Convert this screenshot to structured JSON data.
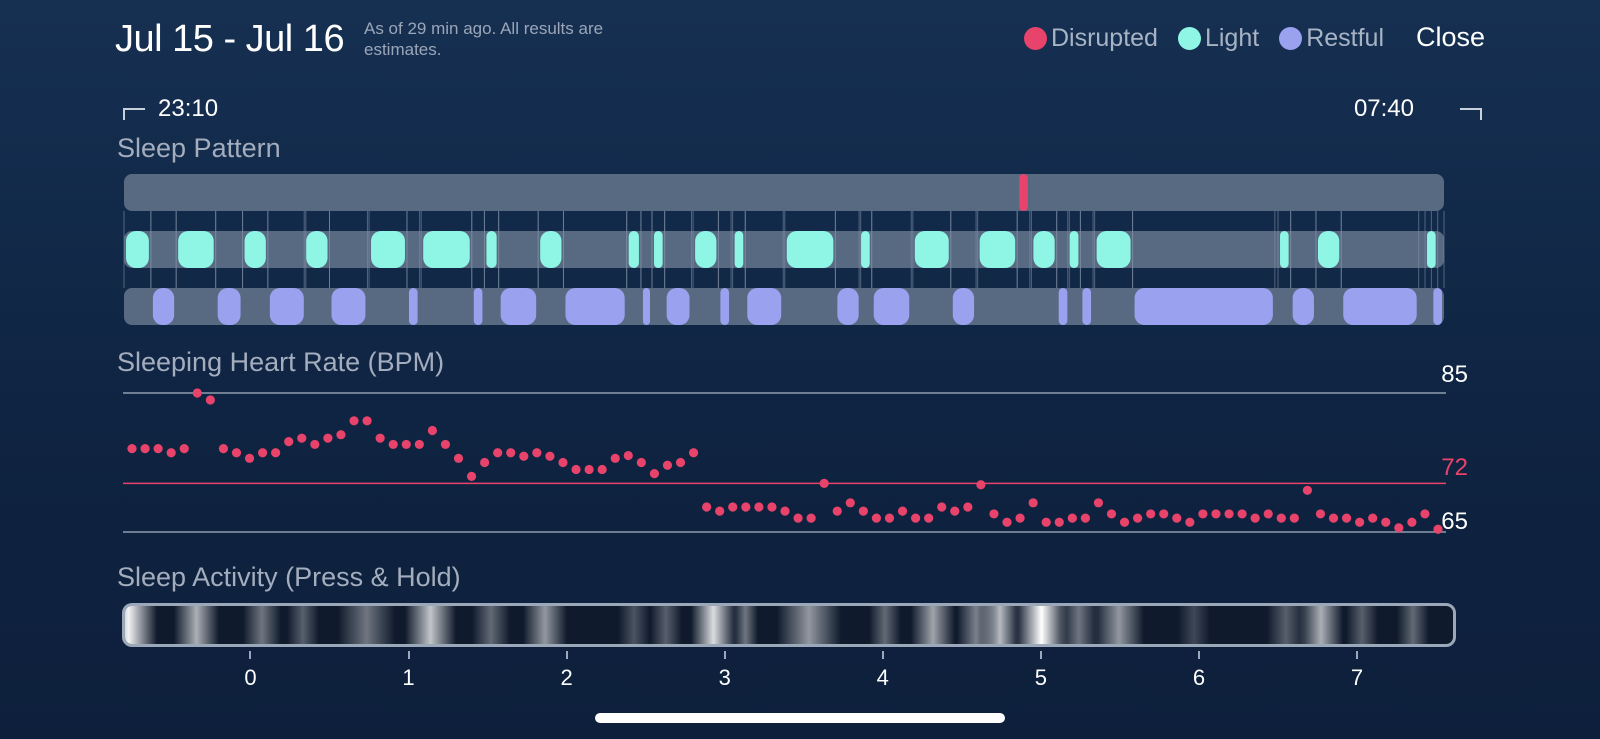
{
  "header": {
    "date_range": "Jul 15 - Jul 16",
    "note": "As of 29 min ago. All results are estimates.",
    "close_label": "Close"
  },
  "legend": [
    {
      "label": "Disrupted",
      "color": "#e8436a"
    },
    {
      "label": "Light",
      "color": "#8ff5e4"
    },
    {
      "label": "Restful",
      "color": "#9aa2f0"
    }
  ],
  "time_range": {
    "start": "23:10",
    "end": "07:40"
  },
  "colors": {
    "track": "#586a82",
    "disrupted": "#e8436a",
    "light": "#8ff5e4",
    "restful": "#9aa2f0",
    "heart_dot": "#e8436a",
    "avg_line": "#e8436a",
    "grid_line": "#8f9bad"
  },
  "sleep_pattern": {
    "label": "Sleep Pattern",
    "x_start": -0.8,
    "x_end": 7.55,
    "disrupted": [
      [
        4.85,
        4.93
      ]
    ],
    "light": [
      [
        -0.8,
        -0.63
      ],
      [
        -0.47,
        -0.22
      ],
      [
        -0.05,
        0.11
      ],
      [
        0.34,
        0.5
      ],
      [
        0.75,
        0.99
      ],
      [
        1.08,
        1.4
      ],
      [
        1.48,
        1.57
      ],
      [
        1.82,
        1.98
      ],
      [
        2.38,
        2.47
      ],
      [
        2.54,
        2.62
      ],
      [
        2.8,
        2.96
      ],
      [
        3.05,
        3.13
      ],
      [
        3.38,
        3.7
      ],
      [
        3.85,
        3.93
      ],
      [
        4.19,
        4.43
      ],
      [
        4.6,
        4.85
      ],
      [
        4.94,
        5.1
      ],
      [
        5.17,
        5.25
      ],
      [
        5.34,
        5.58
      ],
      [
        6.5,
        6.58
      ],
      [
        6.74,
        6.9
      ],
      [
        7.43,
        7.51
      ]
    ],
    "restful": [
      [
        -0.63,
        -0.47
      ],
      [
        -0.22,
        -0.05
      ],
      [
        0.11,
        0.35
      ],
      [
        0.5,
        0.74
      ],
      [
        0.99,
        1.07
      ],
      [
        1.4,
        1.48
      ],
      [
        1.57,
        1.82
      ],
      [
        1.98,
        2.38
      ],
      [
        2.47,
        2.54
      ],
      [
        2.62,
        2.79
      ],
      [
        2.96,
        3.04
      ],
      [
        3.13,
        3.37
      ],
      [
        3.7,
        3.86
      ],
      [
        3.93,
        4.18
      ],
      [
        4.43,
        4.59
      ],
      [
        5.1,
        5.18
      ],
      [
        5.25,
        5.33
      ],
      [
        5.58,
        6.48
      ],
      [
        6.58,
        6.74
      ],
      [
        6.9,
        7.39
      ],
      [
        7.47,
        7.55
      ]
    ]
  },
  "heart_rate": {
    "label": "Sleeping Heart Rate (BPM)",
    "max": "85",
    "avg": "72",
    "min": "65",
    "y_max": 85,
    "y_min": 65,
    "y_avg": 72,
    "x_start": -0.8,
    "x_end": 7.55,
    "values": [
      77,
      77,
      77,
      76.4,
      77,
      85,
      84,
      77,
      76.4,
      75.6,
      76.4,
      76.4,
      78,
      78.5,
      77.6,
      78.5,
      79,
      81,
      81,
      78.5,
      77.6,
      77.6,
      77.6,
      79.6,
      77.6,
      75.6,
      73,
      75,
      76.4,
      76.4,
      75.9,
      76.4,
      75.9,
      75,
      74,
      74,
      74,
      75.6,
      76,
      75,
      73.4,
      74.6,
      75,
      76.4,
      68.6,
      68,
      68.6,
      68.6,
      68.6,
      68.6,
      68,
      67,
      67,
      72,
      68,
      69.2,
      68,
      67,
      67,
      68,
      67,
      67,
      68.6,
      68,
      68.6,
      71.8,
      67.6,
      66.4,
      67,
      69.2,
      66.4,
      66.4,
      67,
      67,
      69.2,
      67.6,
      66.4,
      67,
      67.6,
      67.6,
      67,
      66.4,
      67.6,
      67.6,
      67.6,
      67.6,
      67,
      67.6,
      67,
      67,
      71,
      67.6,
      67,
      67,
      66.4,
      67,
      66.4,
      65.6,
      66.4,
      67.6,
      65.4
    ]
  },
  "sleep_activity": {
    "label": "Sleep Activity (Press & Hold)",
    "x_start": -0.8,
    "x_end": 7.55,
    "x_ticks": [
      "0",
      "1",
      "2",
      "3",
      "4",
      "5",
      "6",
      "7"
    ],
    "bands": [
      [
        -0.78,
        0.95,
        0.18
      ],
      [
        -0.35,
        0.65,
        0.14
      ],
      [
        0.06,
        0.4,
        0.12
      ],
      [
        0.32,
        0.3,
        0.1
      ],
      [
        0.72,
        0.4,
        0.18
      ],
      [
        1.12,
        0.75,
        0.16
      ],
      [
        1.5,
        0.35,
        0.12
      ],
      [
        1.84,
        0.55,
        0.14
      ],
      [
        2.4,
        0.25,
        0.1
      ],
      [
        2.6,
        0.3,
        0.1
      ],
      [
        2.9,
        0.85,
        0.14
      ],
      [
        3.1,
        0.4,
        0.08
      ],
      [
        3.5,
        0.55,
        0.2
      ],
      [
        3.98,
        0.35,
        0.1
      ],
      [
        4.28,
        0.6,
        0.14
      ],
      [
        4.55,
        0.45,
        0.12
      ],
      [
        4.7,
        0.7,
        0.12
      ],
      [
        4.96,
        1.0,
        0.16
      ],
      [
        5.2,
        0.4,
        0.12
      ],
      [
        5.45,
        0.55,
        0.16
      ],
      [
        5.92,
        0.2,
        0.1
      ],
      [
        6.5,
        0.3,
        0.12
      ],
      [
        6.72,
        0.65,
        0.14
      ],
      [
        6.98,
        0.3,
        0.1
      ],
      [
        7.3,
        0.35,
        0.1
      ]
    ]
  },
  "home_indicator": ""
}
